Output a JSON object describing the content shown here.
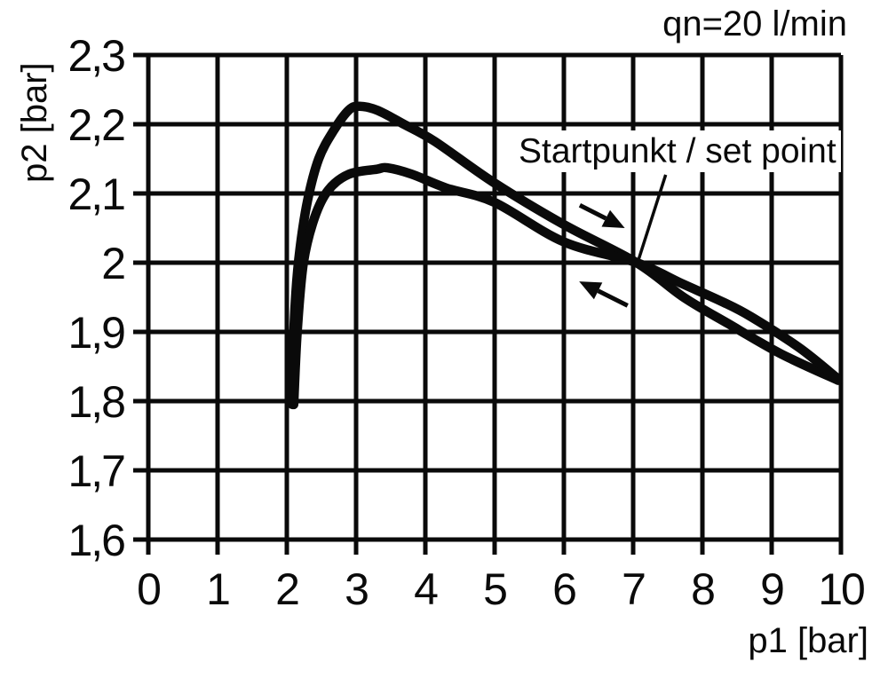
{
  "chart_data": {
    "type": "line",
    "title": "qn=20 l/min",
    "xlabel": "p1 [bar]",
    "ylabel": "p2 [bar]",
    "xlim": [
      0,
      10
    ],
    "ylim": [
      1.6,
      2.3
    ],
    "grid": "on",
    "x_ticks": [
      {
        "label": "0",
        "value": 0
      },
      {
        "label": "1",
        "value": 1
      },
      {
        "label": "2",
        "value": 2
      },
      {
        "label": "3",
        "value": 3
      },
      {
        "label": "4",
        "value": 4
      },
      {
        "label": "5",
        "value": 5
      },
      {
        "label": "6",
        "value": 6
      },
      {
        "label": "7",
        "value": 7
      },
      {
        "label": "8",
        "value": 8
      },
      {
        "label": "9",
        "value": 9
      },
      {
        "label": "10",
        "value": 10
      }
    ],
    "y_ticks": [
      {
        "label": "2,3",
        "value": 2.3
      },
      {
        "label": "2,2",
        "value": 2.2
      },
      {
        "label": "2,1",
        "value": 2.1
      },
      {
        "label": "2",
        "value": 2.0
      },
      {
        "label": "1,9",
        "value": 1.9
      },
      {
        "label": "1,8",
        "value": 1.8
      },
      {
        "label": "1,7",
        "value": 1.7
      },
      {
        "label": "1,6",
        "value": 1.6
      }
    ],
    "series": [
      {
        "name": "upper-curve-p1-increasing",
        "points": [
          [
            2.08,
            1.795
          ],
          [
            2.09,
            1.87
          ],
          [
            2.13,
            1.955
          ],
          [
            2.19,
            2.02
          ],
          [
            2.3,
            2.09
          ],
          [
            2.46,
            2.15
          ],
          [
            2.67,
            2.19
          ],
          [
            2.89,
            2.22
          ],
          [
            3.05,
            2.226
          ],
          [
            3.31,
            2.22
          ],
          [
            3.69,
            2.2
          ],
          [
            4.14,
            2.175
          ],
          [
            5.0,
            2.115
          ],
          [
            6.0,
            2.055
          ],
          [
            7.05,
            2.0
          ],
          [
            7.73,
            1.95
          ],
          [
            8.37,
            1.912
          ],
          [
            9.14,
            1.868
          ],
          [
            9.96,
            1.83
          ]
        ]
      },
      {
        "name": "lower-curve-p1-decreasing",
        "points": [
          [
            2.1,
            1.795
          ],
          [
            2.15,
            1.9
          ],
          [
            2.24,
            2.0
          ],
          [
            2.4,
            2.065
          ],
          [
            2.6,
            2.105
          ],
          [
            2.9,
            2.128
          ],
          [
            3.3,
            2.135
          ],
          [
            3.45,
            2.137
          ],
          [
            3.8,
            2.128
          ],
          [
            4.3,
            2.108
          ],
          [
            5.0,
            2.087
          ],
          [
            6.0,
            2.03
          ],
          [
            7.05,
            2.0
          ],
          [
            7.7,
            1.97
          ],
          [
            8.3,
            1.943
          ],
          [
            8.7,
            1.922
          ],
          [
            9.4,
            1.877
          ],
          [
            9.96,
            1.832
          ]
        ]
      }
    ],
    "annotations": {
      "set_point_label": "Startpunkt / set point",
      "set_point": [
        7.05,
        2.0
      ],
      "leader_line": {
        "from": [
          7.47,
          2.127
        ],
        "to": [
          7.08,
          2.005
        ]
      },
      "direction_arrows": [
        {
          "name": "forward-arrow",
          "from": [
            6.23,
            2.083
          ],
          "to": [
            6.88,
            2.05
          ]
        },
        {
          "name": "back-arrow",
          "from": [
            6.92,
            1.938
          ],
          "to": [
            6.22,
            1.973
          ]
        }
      ]
    },
    "colors": {
      "curve": "#0a0a0a",
      "grid": "#0a0a0a",
      "annotation": "#0a0a0a",
      "background": "#ffffff"
    }
  }
}
